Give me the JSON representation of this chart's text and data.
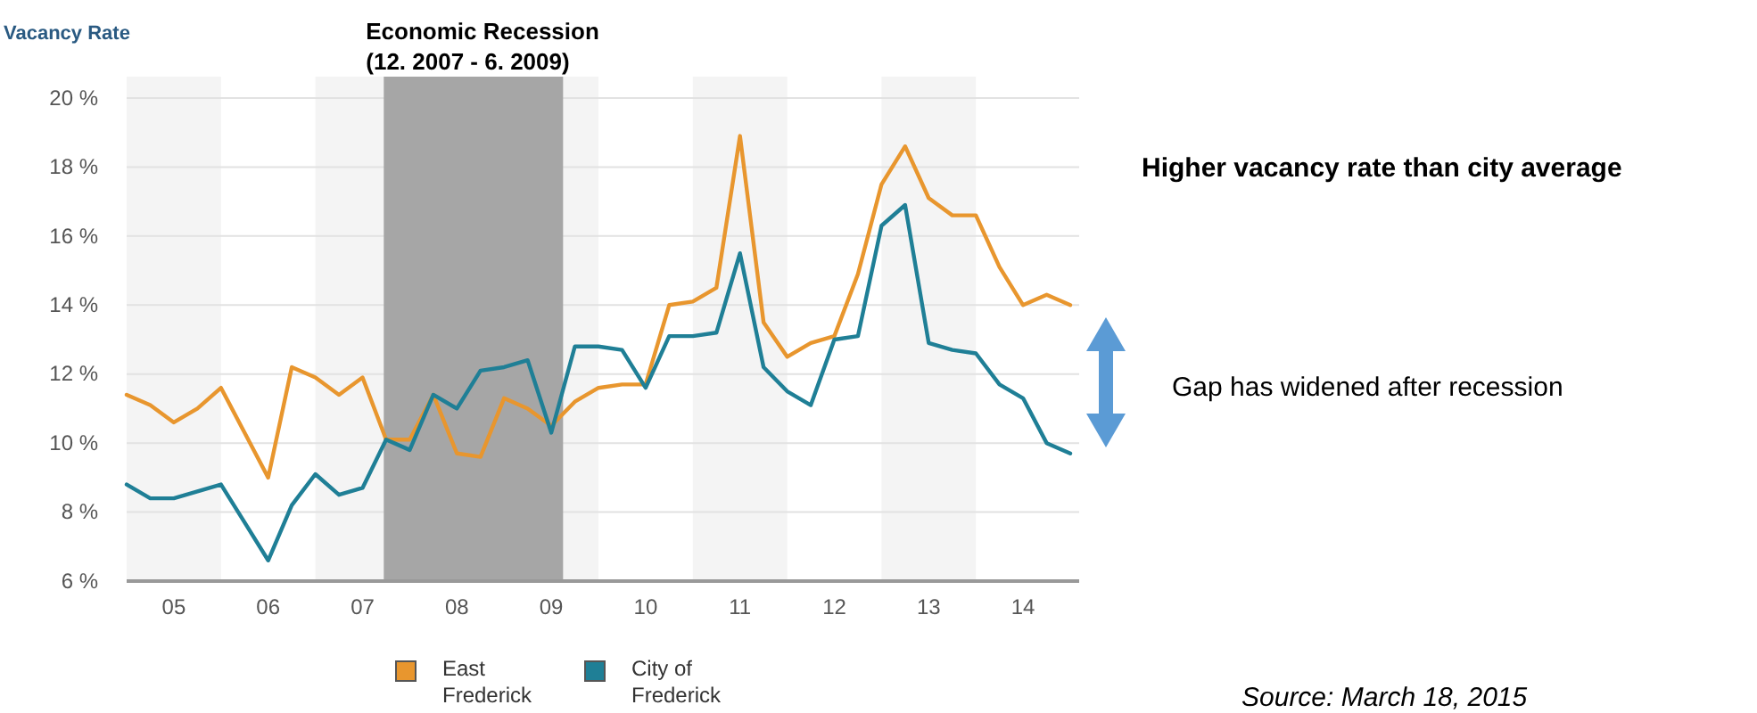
{
  "chart_data": {
    "type": "line",
    "ylabel": "Vacancy Rate",
    "categories": [
      null,
      null,
      "05",
      null,
      null,
      null,
      "06",
      null,
      null,
      null,
      "07",
      null,
      null,
      null,
      "08",
      null,
      null,
      null,
      "09",
      null,
      null,
      null,
      "10",
      null,
      null,
      null,
      "11",
      null,
      null,
      null,
      "12",
      null,
      null,
      null,
      "13",
      null,
      null,
      null,
      "14",
      null,
      null
    ],
    "series": [
      {
        "name": "East Frederick",
        "color": "#e8962e",
        "values": [
          11.4,
          11.1,
          10.6,
          11.0,
          11.6,
          10.3,
          9.0,
          12.2,
          11.9,
          11.4,
          11.9,
          10.1,
          10.1,
          11.4,
          9.7,
          9.6,
          11.3,
          11.0,
          10.5,
          11.2,
          11.6,
          11.7,
          11.7,
          14.0,
          14.1,
          14.5,
          18.9,
          13.5,
          12.5,
          12.9,
          13.1,
          14.9,
          17.5,
          18.6,
          17.1,
          16.6,
          16.6,
          15.1,
          14.0,
          14.3,
          14.0
        ]
      },
      {
        "name": "City of Frederick",
        "color": "#1f7f96",
        "values": [
          8.8,
          8.4,
          8.4,
          8.6,
          8.8,
          7.7,
          6.6,
          8.2,
          9.1,
          8.5,
          8.7,
          10.1,
          9.8,
          11.4,
          11.0,
          12.1,
          12.2,
          12.4,
          10.3,
          12.8,
          12.8,
          12.7,
          11.6,
          13.1,
          13.1,
          13.2,
          15.5,
          12.2,
          11.5,
          11.1,
          13.0,
          13.1,
          16.3,
          16.9,
          12.9,
          12.7,
          12.6,
          11.7,
          11.3,
          10.0,
          9.7
        ]
      }
    ],
    "ylim": [
      6,
      20
    ],
    "yticks": [
      {
        "value": 6,
        "label": "6 %"
      },
      {
        "value": 8,
        "label": "8 %"
      },
      {
        "value": 10,
        "label": "10 %"
      },
      {
        "value": 12,
        "label": "12 %"
      },
      {
        "value": 14,
        "label": "14 %"
      },
      {
        "value": 16,
        "label": "16 %"
      },
      {
        "value": 18,
        "label": "18 %"
      },
      {
        "value": 20,
        "label": "20 %"
      }
    ],
    "grid": "y",
    "legend": "bottom",
    "marker": "none",
    "line_style": "solid",
    "annotations": [
      "Economic Recession\n(12. 2007 - 6. 2009)",
      "Higher vacancy rate than city average",
      "Gap has widened after recession",
      "Source: March 18, 2015"
    ]
  }
}
